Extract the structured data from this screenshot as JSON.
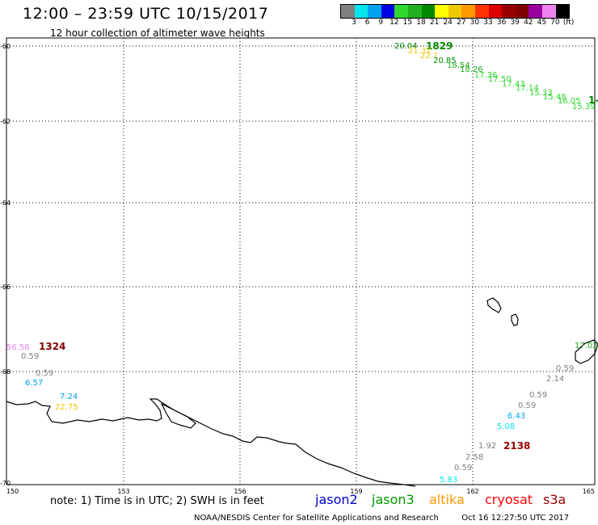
{
  "header": {
    "title": "12:00 – 23:59 UTC 10/15/2017",
    "subtitle": "12 hour collection of altimeter wave heights"
  },
  "color_scale": {
    "ticks": [
      "3",
      "6",
      "9",
      "12",
      "15",
      "18",
      "21",
      "24",
      "27",
      "30",
      "33",
      "36",
      "39",
      "42",
      "45",
      "70",
      "(ft)"
    ],
    "colors": [
      "#808080",
      "#00e5ee",
      "#00a0f0",
      "#0000e0",
      "#30d830",
      "#20b020",
      "#008800",
      "#ffff00",
      "#f0c800",
      "#ff9900",
      "#ff3300",
      "#dd0000",
      "#990000",
      "#800000",
      "#9a00a0",
      "#ee82ee",
      "#000000"
    ]
  },
  "axes": {
    "lat_labels": [
      "-60",
      "-62",
      "-64",
      "-66",
      "-68",
      "-70"
    ],
    "lon_labels": [
      "150",
      "153",
      "156",
      "159",
      "162",
      "165"
    ]
  },
  "observations": [
    {
      "text": "20.04",
      "color": "#008800"
    },
    {
      "text": "1829",
      "color": "#008800",
      "bold": true
    },
    {
      "text": "21.32",
      "color": "#f0c800"
    },
    {
      "text": "22.1",
      "color": "#f0c800"
    },
    {
      "text": "20.85",
      "color": "#008800"
    },
    {
      "text": "18.54",
      "color": "#20b020"
    },
    {
      "text": "18.26",
      "color": "#20b020"
    },
    {
      "text": "17.36",
      "color": "#30d830"
    },
    {
      "text": "17.50",
      "color": "#30d830"
    },
    {
      "text": "17.43",
      "color": "#30d830"
    },
    {
      "text": "17.14",
      "color": "#30d830"
    },
    {
      "text": "15.33",
      "color": "#30d830"
    },
    {
      "text": "15.48",
      "color": "#30d830"
    },
    {
      "text": "16.05",
      "color": "#30d830"
    },
    {
      "text": "1-",
      "color": "#008800",
      "bold": true
    },
    {
      "text": "15.39",
      "color": "#30d830"
    },
    {
      "text": "56.58",
      "color": "#ee82ee"
    },
    {
      "text": "1324",
      "color": "#800000",
      "bold": true
    },
    {
      "text": "0.59",
      "color": "#808080"
    },
    {
      "text": "0.59",
      "color": "#808080"
    },
    {
      "text": "6.57",
      "color": "#00a0f0"
    },
    {
      "text": "7.24",
      "color": "#00a0f0"
    },
    {
      "text": "22.75",
      "color": "#f0c800"
    },
    {
      "text": "17.02",
      "color": "#20b020"
    },
    {
      "text": "0.59",
      "color": "#808080"
    },
    {
      "text": "2.14",
      "color": "#808080"
    },
    {
      "text": "0.59",
      "color": "#808080"
    },
    {
      "text": "0.59",
      "color": "#808080"
    },
    {
      "text": "6.43",
      "color": "#00a0f0"
    },
    {
      "text": "5.08",
      "color": "#00e5ee"
    },
    {
      "text": "1.92",
      "color": "#808080"
    },
    {
      "text": "2138",
      "color": "#990000",
      "bold": true
    },
    {
      "text": "2.58",
      "color": "#808080"
    },
    {
      "text": "0.59",
      "color": "#808080"
    },
    {
      "text": "5.83",
      "color": "#00e5ee"
    }
  ],
  "footer": {
    "note": "note:  1) Time is in UTC;  2) SWH is in feet",
    "legend": [
      {
        "label": "jason2",
        "color": "#0000cc"
      },
      {
        "label": "jason3",
        "color": "#009900"
      },
      {
        "label": "altika",
        "color": "#ff9900"
      },
      {
        "label": "cryosat",
        "color": "#ff0000"
      },
      {
        "label": "s3a",
        "color": "#990000"
      }
    ],
    "credit": "NOAA/NESDIS Center for Satellite Applications and Research",
    "timestamp": "Oct 16 12:27:50 UTC 2017"
  }
}
